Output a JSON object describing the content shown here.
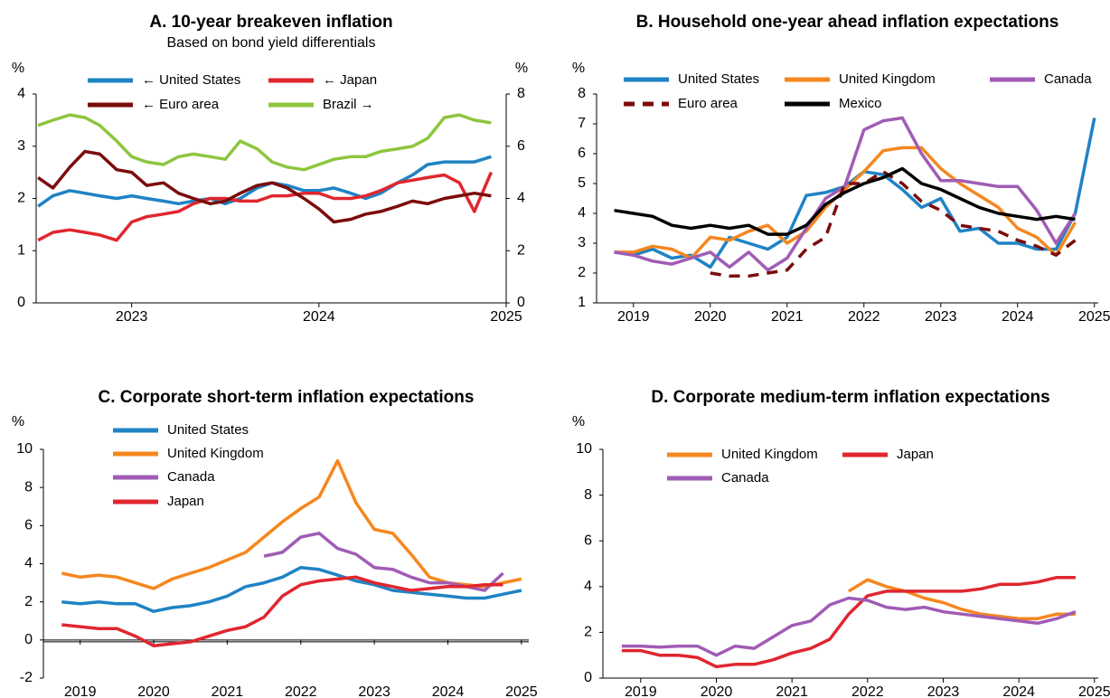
{
  "chart_data": [
    {
      "type": "line",
      "title": "A. 10-year breakeven inflation",
      "subtitle": "Based on bond yield differentials",
      "ylabel": "%",
      "y2label": "%",
      "x": [
        2022.5,
        2022.58,
        2022.67,
        2022.75,
        2022.83,
        2022.92,
        2023,
        2023.08,
        2023.17,
        2023.25,
        2023.33,
        2023.42,
        2023.5,
        2023.58,
        2023.67,
        2023.75,
        2023.83,
        2023.92,
        2024,
        2024.08,
        2024.17,
        2024.25,
        2024.33,
        2024.42,
        2024.5,
        2024.58,
        2024.67,
        2024.75,
        2024.83,
        2024.92
      ],
      "xlim": [
        2022.49,
        2025.0
      ],
      "xticks": [
        2023,
        2024,
        2025
      ],
      "ylim": [
        0,
        4
      ],
      "yticks": [
        0,
        1,
        2,
        3,
        4
      ],
      "y2lim": [
        0,
        8
      ],
      "y2ticks": [
        0,
        2,
        4,
        6,
        8
      ],
      "series": [
        {
          "name": "← United States",
          "color": "#1f83c4",
          "values": [
            1.85,
            2.05,
            2.15,
            2.1,
            2.05,
            2.0,
            2.05,
            2.0,
            1.95,
            1.9,
            1.95,
            2.0,
            1.9,
            2.0,
            2.2,
            2.3,
            2.25,
            2.15,
            2.15,
            2.2,
            2.1,
            2.0,
            2.1,
            2.3,
            2.45,
            2.65,
            2.7,
            2.7,
            2.7,
            2.8
          ]
        },
        {
          "name": "← Japan",
          "color": "#e0262f",
          "values": [
            1.2,
            1.35,
            1.4,
            1.35,
            1.3,
            1.2,
            1.55,
            1.65,
            1.7,
            1.75,
            1.9,
            2.0,
            2.0,
            1.95,
            1.95,
            2.05,
            2.05,
            2.1,
            2.1,
            2.0,
            2.0,
            2.05,
            2.15,
            2.3,
            2.35,
            2.4,
            2.45,
            2.3,
            1.75,
            2.5
          ]
        },
        {
          "name": "← Euro area",
          "color": "#7b0c0c",
          "values": [
            2.4,
            2.2,
            2.6,
            2.9,
            2.85,
            2.55,
            2.5,
            2.25,
            2.3,
            2.1,
            2.0,
            1.9,
            1.95,
            2.1,
            2.25,
            2.3,
            2.2,
            2.0,
            1.8,
            1.55,
            1.6,
            1.7,
            1.75,
            1.85,
            1.95,
            1.9,
            2.0,
            2.05,
            2.1,
            2.05
          ]
        },
        {
          "name": "Brazil →",
          "color": "#8dc63f",
          "axis": "y2",
          "values": [
            6.8,
            7.0,
            7.2,
            7.1,
            6.8,
            6.2,
            5.6,
            5.4,
            5.3,
            5.6,
            5.7,
            5.6,
            5.5,
            6.2,
            5.9,
            5.4,
            5.2,
            5.1,
            5.3,
            5.5,
            5.6,
            5.6,
            5.8,
            5.9,
            6.0,
            6.3,
            7.1,
            7.2,
            7.0,
            6.9
          ]
        }
      ]
    },
    {
      "type": "line",
      "title": "B. Household one-year ahead inflation expectations",
      "ylabel": "%",
      "x": [
        2018.75,
        2019,
        2019.25,
        2019.5,
        2019.75,
        2020,
        2020.25,
        2020.5,
        2020.75,
        2021,
        2021.25,
        2021.5,
        2021.75,
        2022,
        2022.25,
        2022.5,
        2022.75,
        2023,
        2023.25,
        2023.5,
        2023.75,
        2024,
        2024.25,
        2024.5,
        2024.75,
        2025
      ],
      "xlim": [
        2018.52,
        2025.05
      ],
      "xticks": [
        2019,
        2020,
        2021,
        2022,
        2023,
        2024,
        2025
      ],
      "ylim": [
        1,
        8
      ],
      "yticks": [
        1,
        2,
        3,
        4,
        5,
        6,
        7,
        8
      ],
      "series": [
        {
          "name": "United States",
          "color": "#1f83c4",
          "values": [
            2.7,
            2.6,
            2.8,
            2.5,
            2.6,
            2.2,
            3.2,
            3.0,
            2.8,
            3.2,
            4.6,
            4.7,
            4.9,
            5.4,
            5.3,
            4.8,
            4.2,
            4.5,
            3.4,
            3.5,
            3.0,
            3.0,
            2.8,
            2.8,
            4.0,
            7.2
          ]
        },
        {
          "name": "United Kingdom",
          "color": "#f5871f",
          "values": [
            2.7,
            2.7,
            2.9,
            2.8,
            2.5,
            3.2,
            3.1,
            3.4,
            3.6,
            3.0,
            3.4,
            4.2,
            4.8,
            5.4,
            6.1,
            6.2,
            6.2,
            5.5,
            5.0,
            4.6,
            4.2,
            3.5,
            3.2,
            2.6,
            3.7,
            null
          ]
        },
        {
          "name": "Canada",
          "color": "#a05cb5",
          "values": [
            2.7,
            2.6,
            2.4,
            2.3,
            2.5,
            2.7,
            2.2,
            2.7,
            2.1,
            2.5,
            3.5,
            4.5,
            4.9,
            6.8,
            7.1,
            7.2,
            6.0,
            5.1,
            5.1,
            5.0,
            4.9,
            4.9,
            4.1,
            3.0,
            4.0,
            null
          ]
        },
        {
          "name": "Euro area",
          "color": "#7b0c0c",
          "style": "dashed",
          "values": [
            null,
            null,
            null,
            null,
            null,
            2.0,
            1.9,
            1.9,
            2.0,
            2.1,
            2.8,
            3.2,
            5.0,
            5.0,
            5.4,
            5.0,
            4.4,
            4.1,
            3.6,
            3.5,
            3.4,
            3.1,
            2.9,
            2.6,
            3.1,
            null
          ]
        },
        {
          "name": "Mexico",
          "color": "#000000",
          "values": [
            4.1,
            4.0,
            3.9,
            3.6,
            3.5,
            3.6,
            3.5,
            3.6,
            3.3,
            3.3,
            3.6,
            4.3,
            4.7,
            5.0,
            5.2,
            5.5,
            5.0,
            4.8,
            4.5,
            4.2,
            4.0,
            3.9,
            3.8,
            3.9,
            3.8,
            null
          ]
        }
      ]
    },
    {
      "type": "line",
      "title": "C. Corporate short-term inflation expectations",
      "ylabel": "%",
      "x": [
        2018.75,
        2019,
        2019.25,
        2019.5,
        2019.75,
        2020,
        2020.25,
        2020.5,
        2020.75,
        2021,
        2021.25,
        2021.5,
        2021.75,
        2022,
        2022.25,
        2022.5,
        2022.75,
        2023,
        2023.25,
        2023.5,
        2023.75,
        2024,
        2024.25,
        2024.5,
        2024.75,
        2025
      ],
      "xlim": [
        2018.5,
        2025.1
      ],
      "xticks": [
        2019,
        2020,
        2021,
        2022,
        2023,
        2024,
        2025
      ],
      "ylim": [
        -2,
        10
      ],
      "yticks": [
        -2,
        0,
        2,
        4,
        6,
        8,
        10
      ],
      "series": [
        {
          "name": "United States",
          "color": "#1f83c4",
          "values": [
            2.0,
            1.9,
            2.0,
            1.9,
            1.9,
            1.5,
            1.7,
            1.8,
            2.0,
            2.3,
            2.8,
            3.0,
            3.3,
            3.8,
            3.7,
            3.4,
            3.1,
            2.9,
            2.6,
            2.5,
            2.4,
            2.3,
            2.2,
            2.2,
            2.4,
            2.6
          ]
        },
        {
          "name": "United Kingdom",
          "color": "#f5871f",
          "values": [
            3.5,
            3.3,
            3.4,
            3.3,
            3.0,
            2.7,
            3.2,
            3.5,
            3.8,
            4.2,
            4.6,
            5.4,
            6.2,
            6.9,
            7.5,
            9.4,
            7.2,
            5.8,
            5.6,
            4.5,
            3.3,
            3.0,
            2.9,
            2.8,
            3.0,
            3.2
          ]
        },
        {
          "name": "Canada",
          "color": "#a05cb5",
          "values": [
            null,
            null,
            null,
            null,
            null,
            null,
            null,
            null,
            null,
            null,
            null,
            4.4,
            4.6,
            5.4,
            5.6,
            4.8,
            4.5,
            3.8,
            3.7,
            3.3,
            3.0,
            3.0,
            2.8,
            2.6,
            3.5,
            null
          ]
        },
        {
          "name": "Japan",
          "color": "#e0262f",
          "values": [
            0.8,
            0.7,
            0.6,
            0.6,
            0.2,
            -0.3,
            -0.2,
            -0.1,
            0.2,
            0.5,
            0.7,
            1.2,
            2.3,
            2.9,
            3.1,
            3.2,
            3.3,
            3.0,
            2.8,
            2.6,
            2.7,
            2.8,
            2.8,
            2.9,
            2.9,
            null
          ]
        }
      ]
    },
    {
      "type": "line",
      "title": "D. Corporate medium-term inflation expectations",
      "ylabel": "%",
      "x": [
        2018.75,
        2019,
        2019.25,
        2019.5,
        2019.75,
        2020,
        2020.25,
        2020.5,
        2020.75,
        2021,
        2021.25,
        2021.5,
        2021.75,
        2022,
        2022.25,
        2022.5,
        2022.75,
        2023,
        2023.25,
        2023.5,
        2023.75,
        2024,
        2024.25,
        2024.5,
        2024.75
      ],
      "xlim": [
        2018.5,
        2025.05
      ],
      "xticks": [
        2019,
        2020,
        2021,
        2022,
        2023,
        2024,
        2025
      ],
      "ylim": [
        0,
        10
      ],
      "yticks": [
        0,
        2,
        4,
        6,
        8,
        10
      ],
      "series": [
        {
          "name": "United Kingdom",
          "color": "#f5871f",
          "values": [
            null,
            null,
            null,
            null,
            null,
            null,
            null,
            null,
            null,
            null,
            null,
            null,
            3.8,
            4.3,
            4.0,
            3.8,
            3.5,
            3.3,
            3.0,
            2.8,
            2.7,
            2.6,
            2.6,
            2.8,
            2.8
          ]
        },
        {
          "name": "Japan",
          "color": "#e0262f",
          "values": [
            1.2,
            1.2,
            1.0,
            1.0,
            0.9,
            0.5,
            0.6,
            0.6,
            0.8,
            1.1,
            1.3,
            1.7,
            2.8,
            3.6,
            3.8,
            3.8,
            3.8,
            3.8,
            3.8,
            3.9,
            4.1,
            4.1,
            4.2,
            4.4,
            4.4
          ]
        },
        {
          "name": "Canada",
          "color": "#a05cb5",
          "values": [
            1.4,
            1.4,
            1.35,
            1.4,
            1.4,
            1.0,
            1.4,
            1.3,
            1.8,
            2.3,
            2.5,
            3.2,
            3.5,
            3.4,
            3.1,
            3.0,
            3.1,
            2.9,
            2.8,
            2.7,
            2.6,
            2.5,
            2.4,
            2.6,
            2.9
          ]
        }
      ]
    }
  ]
}
